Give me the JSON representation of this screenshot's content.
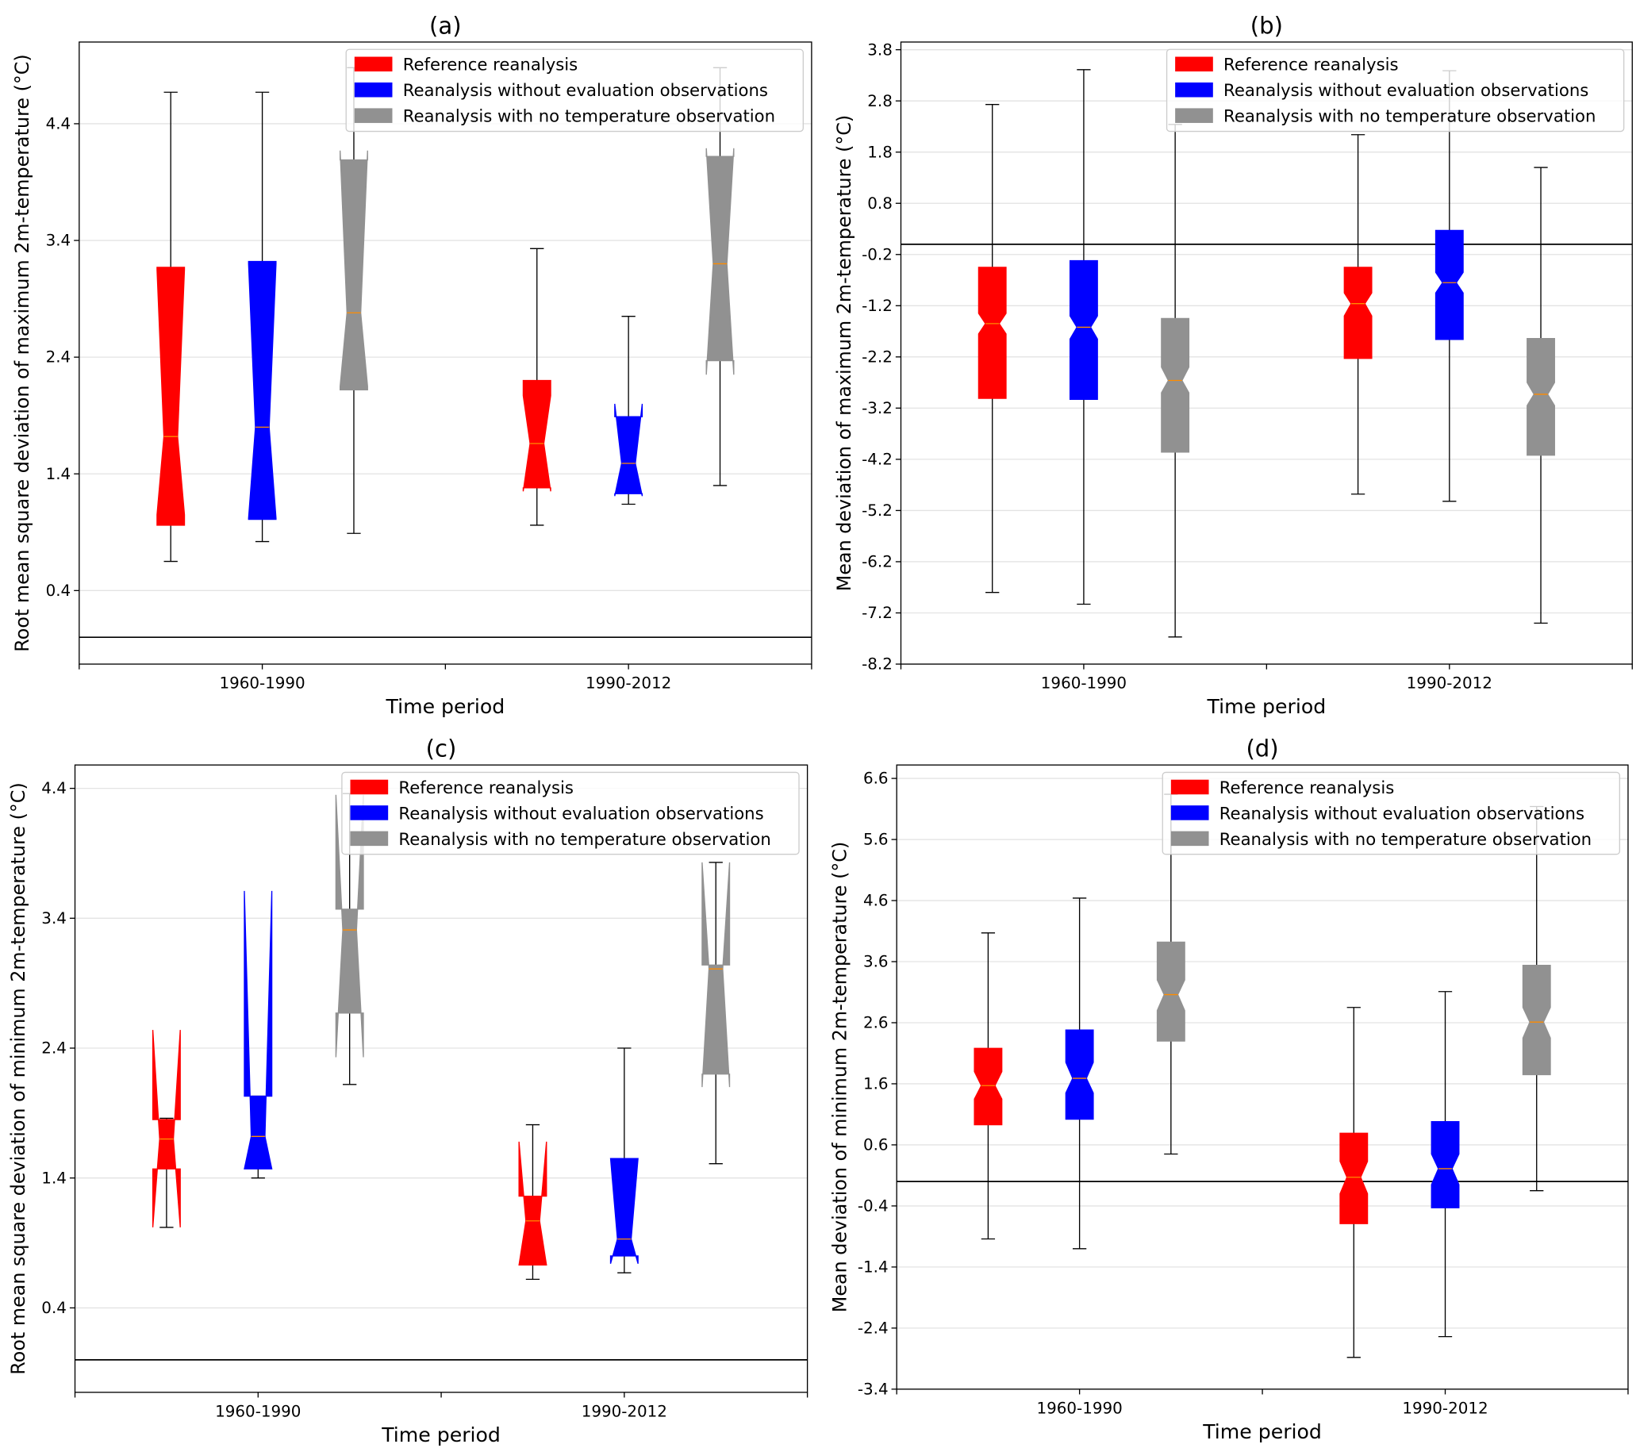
{
  "chart_data": [
    {
      "type": "box",
      "title": "(a)",
      "xlabel": "Time period",
      "ylabel": "Root mean square deviation of maximum 2m-temperature (°C)",
      "categories": [
        "1960-1990",
        "1990-2012"
      ],
      "ylim": [
        -0.23,
        5.1
      ],
      "yticks": [
        0.4,
        1.4,
        2.4,
        3.4,
        4.4
      ],
      "grid": true,
      "hline": 0,
      "legend": "upper right",
      "series": [
        {
          "name": "Reference reanalysis",
          "color": "#ff0000",
          "low": [
            0.65,
            0.96
          ],
          "q1": [
            0.96,
            1.28
          ],
          "median": [
            1.72,
            1.66
          ],
          "q3": [
            3.17,
            2.2
          ],
          "high": [
            4.67,
            3.33
          ],
          "notch_low": [
            1.05,
            1.25
          ],
          "notch_high": [
            3.15,
            2.07
          ]
        },
        {
          "name": "Reanalysis without evaluation observations",
          "color": "#0000ff",
          "low": [
            0.82,
            1.14
          ],
          "q1": [
            1.01,
            1.23
          ],
          "median": [
            1.8,
            1.49
          ],
          "q3": [
            3.22,
            1.89
          ],
          "high": [
            4.67,
            2.75
          ],
          "notch_low": [
            1.02,
            1.21
          ],
          "notch_high": [
            3.2,
            2.0
          ]
        },
        {
          "name": "Reanalysis with no temperature observation",
          "color": "#919191",
          "low": [
            0.89,
            1.3
          ],
          "q1": [
            2.12,
            2.37
          ],
          "median": [
            2.78,
            3.2
          ],
          "q3": [
            4.09,
            4.12
          ],
          "high": [
            4.88,
            4.88
          ],
          "notch_low": [
            2.15,
            2.25
          ],
          "notch_high": [
            4.17,
            4.19
          ]
        }
      ]
    },
    {
      "type": "box",
      "title": "(b)",
      "xlabel": "Time period",
      "ylabel": "Mean deviation of maximum 2m-temperature (°C)",
      "categories": [
        "1960-1990",
        "1990-2012"
      ],
      "ylim": [
        -8.2,
        3.95
      ],
      "yticks": [
        -8.2,
        -7.2,
        -6.2,
        -5.2,
        -4.2,
        -3.2,
        -2.2,
        -1.2,
        -0.2,
        0.8,
        1.8,
        2.8,
        3.8
      ],
      "grid": true,
      "hline": 0,
      "legend": "upper right",
      "series": [
        {
          "name": "Reference reanalysis",
          "color": "#ff0000",
          "low": [
            -6.8,
            -4.88
          ],
          "q1": [
            -3.01,
            -2.23
          ],
          "median": [
            -1.55,
            -1.16
          ],
          "q3": [
            -0.45,
            -0.45
          ],
          "high": [
            2.73,
            2.14
          ],
          "notch_low": [
            -1.75,
            -1.4
          ],
          "notch_high": [
            -1.35,
            -0.95
          ]
        },
        {
          "name": "Reanalysis without evaluation observations",
          "color": "#0000ff",
          "low": [
            -7.03,
            -5.02
          ],
          "q1": [
            -3.03,
            -1.86
          ],
          "median": [
            -1.62,
            -0.75
          ],
          "q3": [
            -0.32,
            0.27
          ],
          "high": [
            3.41,
            3.39
          ],
          "notch_low": [
            -1.85,
            -0.95
          ],
          "notch_high": [
            -1.4,
            -0.55
          ]
        },
        {
          "name": "Reanalysis with no temperature observation",
          "color": "#919191",
          "low": [
            -7.67,
            -7.4
          ],
          "q1": [
            -4.06,
            -4.12
          ],
          "median": [
            -2.66,
            -2.93
          ],
          "q3": [
            -1.45,
            -1.84
          ],
          "high": [
            2.34,
            1.5
          ],
          "notch_low": [
            -2.9,
            -3.15
          ],
          "notch_high": [
            -2.4,
            -2.7
          ]
        }
      ]
    },
    {
      "type": "box",
      "title": "(c)",
      "xlabel": "Time period",
      "ylabel": "Root mean square deviation of minimum 2m-temperature (°C)",
      "categories": [
        "1960-1990",
        "1990-2012"
      ],
      "ylim": [
        -0.25,
        4.58
      ],
      "yticks": [
        0.4,
        1.4,
        2.4,
        3.4,
        4.4
      ],
      "grid": true,
      "hline": 0,
      "legend": "upper right",
      "series": [
        {
          "name": "Reference reanalysis",
          "color": "#ff0000",
          "low": [
            1.02,
            0.62
          ],
          "q1": [
            1.47,
            0.73
          ],
          "median": [
            1.7,
            1.07
          ],
          "q3": [
            1.85,
            1.26
          ],
          "high": [
            1.86,
            1.81
          ],
          "notch_low": [
            1.02,
            0.73
          ],
          "notch_high": [
            2.54,
            1.68
          ]
        },
        {
          "name": "Reanalysis without evaluation observations",
          "color": "#0000ff",
          "low": [
            1.4,
            0.67
          ],
          "q1": [
            1.47,
            0.8
          ],
          "median": [
            1.72,
            0.93
          ],
          "q3": [
            2.03,
            1.55
          ],
          "high": [
            2.03,
            2.4
          ],
          "notch_low": [
            1.47,
            0.74
          ],
          "notch_high": [
            3.61,
            1.55
          ]
        },
        {
          "name": "Reanalysis with no temperature observation",
          "color": "#919191",
          "low": [
            2.12,
            1.51
          ],
          "q1": [
            2.67,
            2.2
          ],
          "median": [
            3.31,
            3.01
          ],
          "q3": [
            3.47,
            3.04
          ],
          "high": [
            4.36,
            3.83
          ],
          "notch_low": [
            2.33,
            2.1
          ],
          "notch_high": [
            4.35,
            3.83
          ]
        }
      ]
    },
    {
      "type": "box",
      "title": "(d)",
      "xlabel": "Time period",
      "ylabel": "Mean deviation of minimum 2m-temperature (°C)",
      "categories": [
        "1960-1990",
        "1990-2012"
      ],
      "ylim": [
        -3.4,
        6.82
      ],
      "yticks": [
        -3.4,
        -2.4,
        -1.4,
        -0.4,
        0.6,
        1.6,
        2.6,
        3.6,
        4.6,
        5.6,
        6.6
      ],
      "grid": true,
      "hline": 0,
      "legend": "upper right",
      "series": [
        {
          "name": "Reference reanalysis",
          "color": "#ff0000",
          "low": [
            -0.94,
            -2.88
          ],
          "q1": [
            0.93,
            -0.69
          ],
          "median": [
            1.57,
            0.07
          ],
          "q3": [
            2.18,
            0.79
          ],
          "high": [
            4.07,
            2.85
          ],
          "notch_low": [
            1.35,
            -0.2
          ],
          "notch_high": [
            1.8,
            0.33
          ]
        },
        {
          "name": "Reanalysis without evaluation observations",
          "color": "#0000ff",
          "low": [
            -1.1,
            -2.54
          ],
          "q1": [
            1.02,
            -0.43
          ],
          "median": [
            1.69,
            0.21
          ],
          "q3": [
            2.48,
            0.98
          ],
          "high": [
            4.64,
            3.11
          ],
          "notch_low": [
            1.45,
            -0.05
          ],
          "notch_high": [
            1.95,
            0.45
          ]
        },
        {
          "name": "Reanalysis with no temperature observation",
          "color": "#919191",
          "low": [
            0.45,
            -0.15
          ],
          "q1": [
            2.3,
            1.75
          ],
          "median": [
            3.06,
            2.61
          ],
          "q3": [
            3.92,
            3.54
          ],
          "high": [
            6.34,
            6.14
          ],
          "notch_low": [
            2.8,
            2.35
          ],
          "notch_high": [
            3.3,
            2.85
          ]
        }
      ]
    }
  ]
}
